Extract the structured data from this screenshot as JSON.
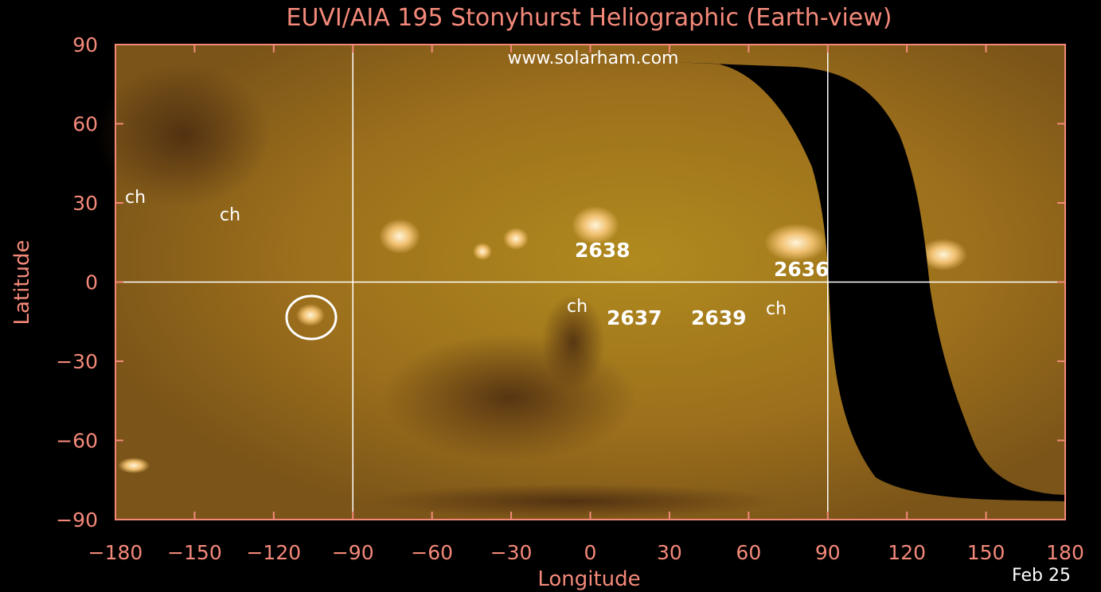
{
  "chart_data": {
    "type": "map",
    "title": "EUVI/AIA 195 Stonyhurst Heliographic (Earth-view)",
    "watermark": "www.solarham.com",
    "x_label": "Longitude",
    "y_label": "Latitude",
    "date": "Feb 25",
    "xlim": [
      -180,
      180
    ],
    "ylim": [
      -90,
      90
    ],
    "xticks": [
      {
        "value": -180,
        "label": "−180"
      },
      {
        "value": -150,
        "label": "−150"
      },
      {
        "value": -120,
        "label": "−120"
      },
      {
        "value": -90,
        "label": "−90"
      },
      {
        "value": -60,
        "label": "−60"
      },
      {
        "value": -30,
        "label": "−30"
      },
      0,
      30,
      60,
      90,
      120,
      150,
      180
    ],
    "yticks": [
      {
        "value": -90,
        "label": "−90"
      },
      {
        "value": -60,
        "label": "−60"
      },
      {
        "value": -30,
        "label": "−30"
      },
      0,
      30,
      60,
      90
    ],
    "grid_lon": [
      -90,
      90
    ],
    "grid_lat": [
      0
    ],
    "annotations": [
      "ch",
      "ch",
      "2638",
      "2636",
      "ch",
      "2637",
      "2639",
      "ch"
    ]
  }
}
